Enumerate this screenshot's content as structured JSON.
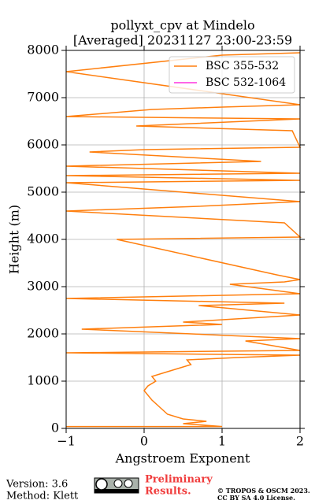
{
  "chart_data": {
    "type": "line",
    "title": [
      "pollyxt_cpv at Mindelo",
      "[Averaged] 20231127 23:00-23:59"
    ],
    "xlabel": "Angstroem Exponent",
    "ylabel": "Height (m)",
    "y": [
      40,
      40,
      100,
      150,
      200,
      300,
      450,
      600,
      800,
      900,
      1000,
      1100,
      1200,
      1350,
      1450,
      1500,
      1550,
      1600,
      1650,
      1850,
      1900,
      2100,
      2200,
      2250,
      2400,
      2600,
      2650,
      2750,
      2850,
      3050,
      3100,
      3150,
      3250,
      4000,
      4050,
      4350,
      4600,
      4700,
      4800,
      5200,
      5250,
      5350,
      5400,
      5550,
      5650,
      5850,
      5900,
      5950,
      6300,
      6400,
      6550,
      6600,
      6750,
      6800,
      6850,
      7550,
      7900,
      7950
    ],
    "series": [
      {
        "name": "BSC 355-532",
        "color": "#ff7f0e",
        "values": [
          -1,
          1,
          0.5,
          0.8,
          0.5,
          0.3,
          0.2,
          0.1,
          0,
          0.05,
          0.15,
          0.1,
          0.3,
          0.6,
          0.55,
          1.2,
          2,
          -1,
          2,
          1.3,
          2,
          -0.8,
          1.0,
          0.5,
          2,
          0.7,
          1.8,
          -1,
          2,
          1.1,
          1.8,
          2,
          1.7,
          -0.35,
          2,
          1.8,
          -1,
          0.7,
          2,
          -1,
          2,
          -1,
          2,
          -1,
          1.5,
          -0.7,
          0.0,
          2,
          1.9,
          -0.1,
          2,
          -1,
          0.1,
          1,
          2,
          -1,
          1,
          2
        ]
      },
      {
        "name": "BSC 532-1064",
        "color": "#ff33dd",
        "values": [
          null,
          null,
          null,
          null,
          null,
          null,
          null,
          null,
          null,
          null,
          null,
          null,
          null,
          null,
          null,
          null,
          null,
          null,
          null,
          null,
          null,
          null,
          null,
          null,
          null,
          null,
          null,
          null,
          null,
          null,
          null,
          null,
          null,
          null,
          null,
          null,
          null,
          null,
          null,
          null,
          null,
          null,
          null,
          null,
          null,
          null,
          null,
          null,
          null,
          null,
          null,
          null,
          null,
          null,
          null,
          null,
          null,
          null
        ]
      }
    ],
    "xlim": [
      -1,
      2
    ],
    "xticks": [
      {
        "value": -1,
        "label": "−1"
      },
      0,
      1,
      2
    ],
    "ylim": [
      0,
      8000
    ],
    "yticks": [
      0,
      1000,
      2000,
      3000,
      4000,
      5000,
      6000,
      7000,
      8000
    ],
    "grid": true,
    "legend": "upper right"
  },
  "footer": {
    "version": "Version: 3.6",
    "method": "Method: Klett",
    "notice": [
      "Preliminary",
      "Results."
    ],
    "copyright": [
      "© TROPOS & OSCM 2023.",
      "CC BY SA 4.0 License."
    ]
  }
}
